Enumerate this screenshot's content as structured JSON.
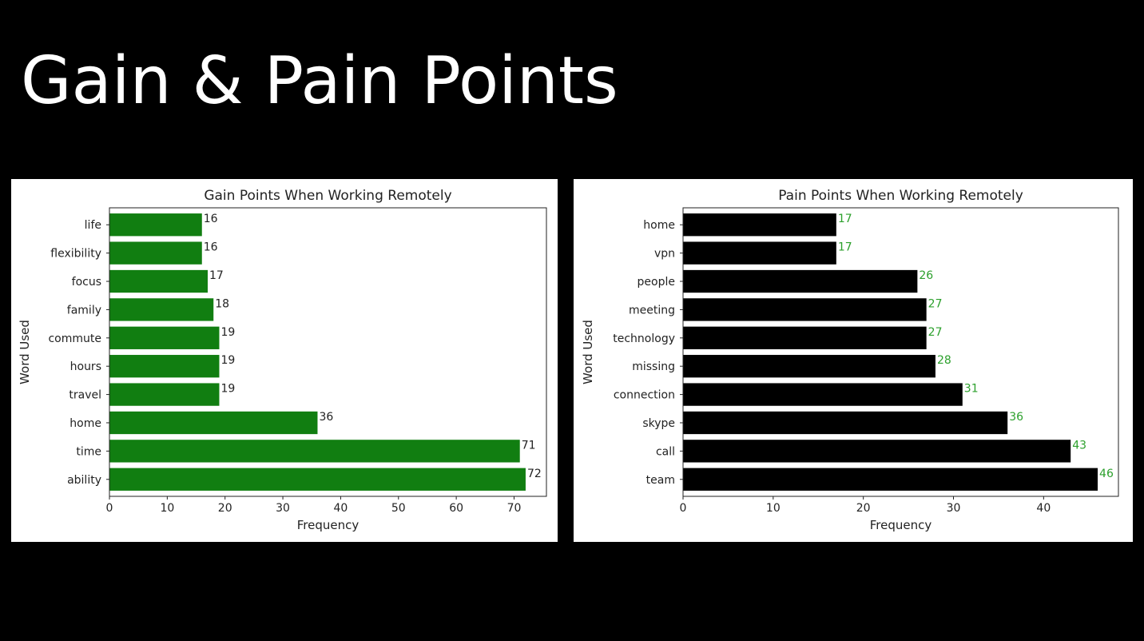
{
  "slide": {
    "title": "Gain & Pain Points"
  },
  "chart_data": [
    {
      "type": "bar",
      "orientation": "horizontal",
      "title": "Gain Points When Working Remotely",
      "xlabel": "Frequency",
      "ylabel": "Word Used",
      "categories": [
        "life",
        "flexibility",
        "focus",
        "family",
        "commute",
        "hours",
        "travel",
        "home",
        "time",
        "ability"
      ],
      "values": [
        16,
        16,
        17,
        18,
        19,
        19,
        19,
        36,
        71,
        72
      ],
      "xlim": [
        0,
        75.6
      ],
      "xticks": [
        0,
        10,
        20,
        30,
        40,
        50,
        60,
        70
      ],
      "grid": false,
      "legend": "none",
      "bar_color": "#117e11",
      "label_color": "#222222"
    },
    {
      "type": "bar",
      "orientation": "horizontal",
      "title": "Pain Points When Working Remotely",
      "xlabel": "Frequency",
      "ylabel": "Word Used",
      "categories": [
        "home",
        "vpn",
        "people",
        "meeting",
        "technology",
        "missing",
        "connection",
        "skype",
        "call",
        "team"
      ],
      "values": [
        17,
        17,
        26,
        27,
        27,
        28,
        31,
        36,
        43,
        46
      ],
      "xlim": [
        0,
        48.3
      ],
      "xticks": [
        0,
        10,
        20,
        30,
        40
      ],
      "grid": false,
      "legend": "none",
      "bar_color": "#000000",
      "label_color": "#2ca02c"
    }
  ]
}
